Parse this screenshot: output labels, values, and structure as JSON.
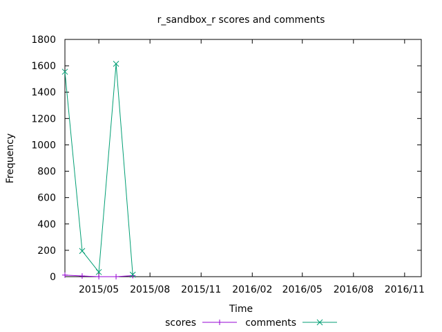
{
  "chart_data": {
    "type": "line",
    "title": "r_sandbox_r scores and comments",
    "xlabel": "Time",
    "ylabel": "Frequency",
    "xlim": [
      "2015-03-01",
      "2016-12-01"
    ],
    "ylim": [
      0,
      1800
    ],
    "yticks": [
      0,
      200,
      400,
      600,
      800,
      1000,
      1200,
      1400,
      1600,
      1800
    ],
    "xticks": [
      {
        "date": "2015-05-01",
        "label": "2015/05"
      },
      {
        "date": "2015-08-01",
        "label": "2015/08"
      },
      {
        "date": "2015-11-01",
        "label": "2015/11"
      },
      {
        "date": "2016-02-01",
        "label": "2016/02"
      },
      {
        "date": "2016-05-01",
        "label": "2016/05"
      },
      {
        "date": "2016-08-01",
        "label": "2016/08"
      },
      {
        "date": "2016-11-01",
        "label": "2016/11"
      }
    ],
    "grid": false,
    "legend_position": "bottom",
    "series": [
      {
        "name": "scores",
        "color": "#9400d3",
        "marker": "plus",
        "points": [
          {
            "x": "2015-03-01",
            "y": 12
          },
          {
            "x": "2015-04-01",
            "y": 5
          },
          {
            "x": "2015-05-01",
            "y": 0
          },
          {
            "x": "2015-06-01",
            "y": 0
          },
          {
            "x": "2015-07-01",
            "y": 8
          }
        ]
      },
      {
        "name": "comments",
        "color": "#009e73",
        "marker": "cross",
        "points": [
          {
            "x": "2015-03-01",
            "y": 1555
          },
          {
            "x": "2015-04-01",
            "y": 195
          },
          {
            "x": "2015-05-01",
            "y": 35
          },
          {
            "x": "2015-06-01",
            "y": 1615
          },
          {
            "x": "2015-07-01",
            "y": 15
          }
        ]
      }
    ]
  }
}
